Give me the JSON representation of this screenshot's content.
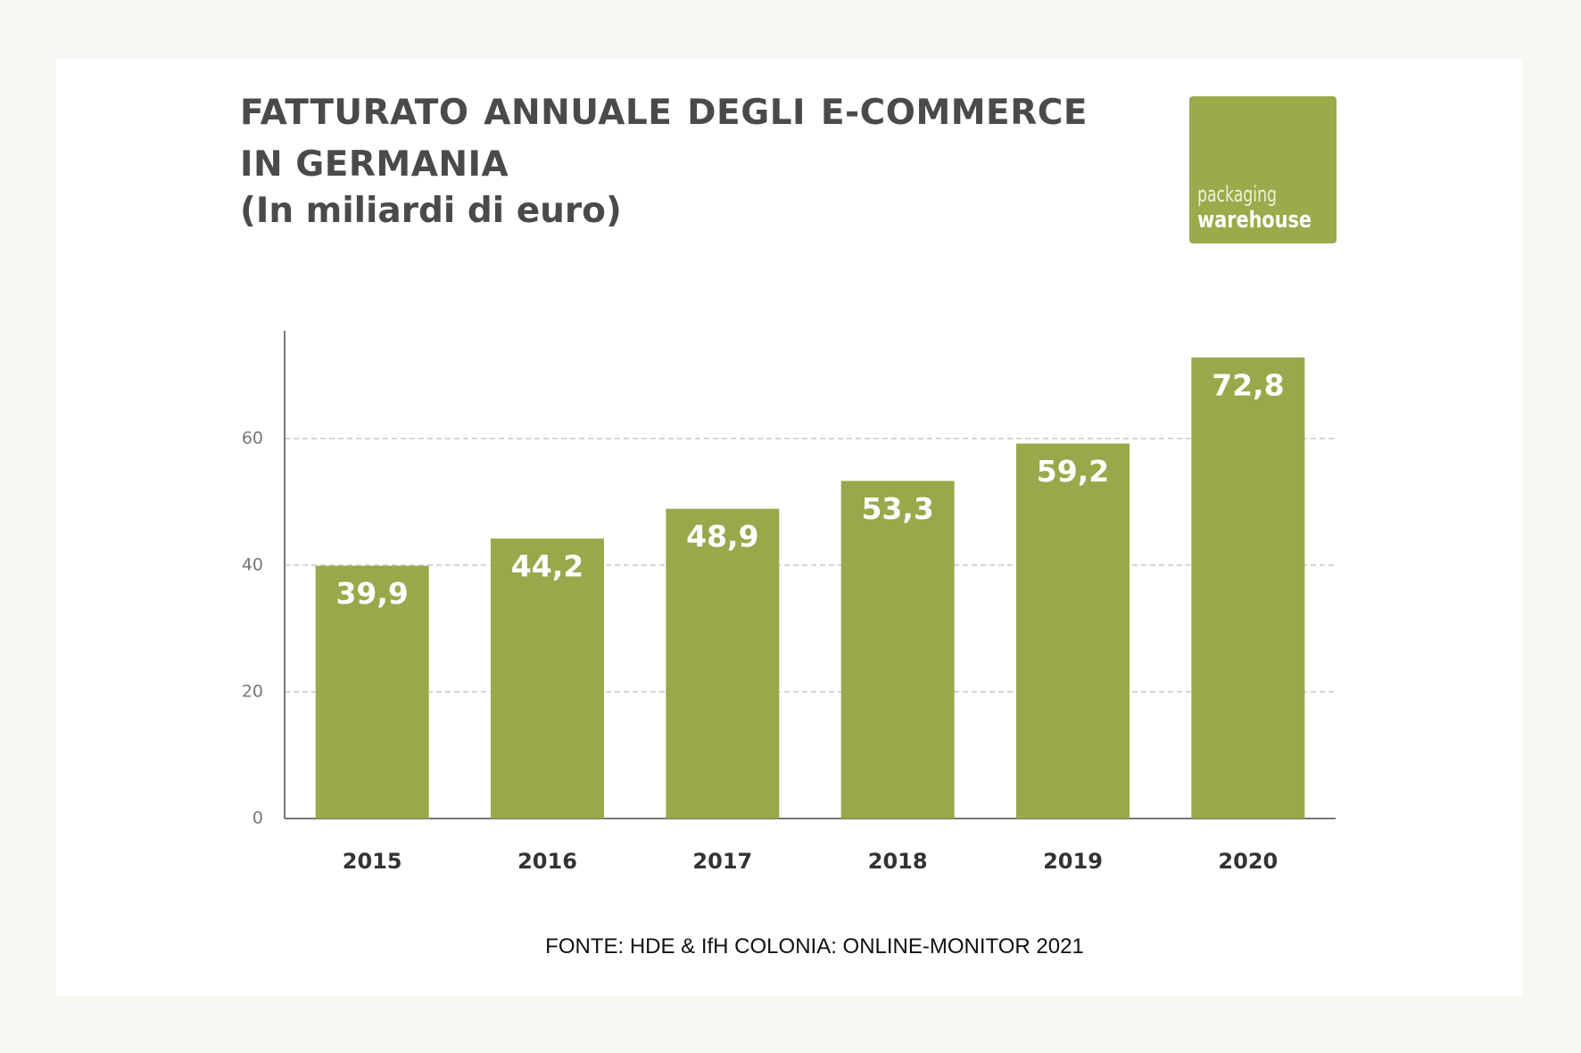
{
  "chart_data": {
    "type": "bar",
    "title": "FATTURATO ANNUALE DEGLI E-COMMERCE IN GERMANIA",
    "subtitle": "(In miliardi di euro)",
    "categories": [
      "2015",
      "2016",
      "2017",
      "2018",
      "2019",
      "2020"
    ],
    "values": [
      39.9,
      44.2,
      48.9,
      53.3,
      59.2,
      72.8
    ],
    "value_labels": [
      "39,9",
      "44,2",
      "48,9",
      "53,3",
      "59,2",
      "72,8"
    ],
    "color": "#98a94b",
    "ylim": [
      0,
      77
    ],
    "yticks": [
      0,
      20,
      40,
      60
    ],
    "grid": true,
    "source": "FONTE: HDE & IfH COLONIA: ONLINE-MONITOR 2021"
  },
  "logo": {
    "line1": "packaging",
    "line2": "warehouse"
  }
}
